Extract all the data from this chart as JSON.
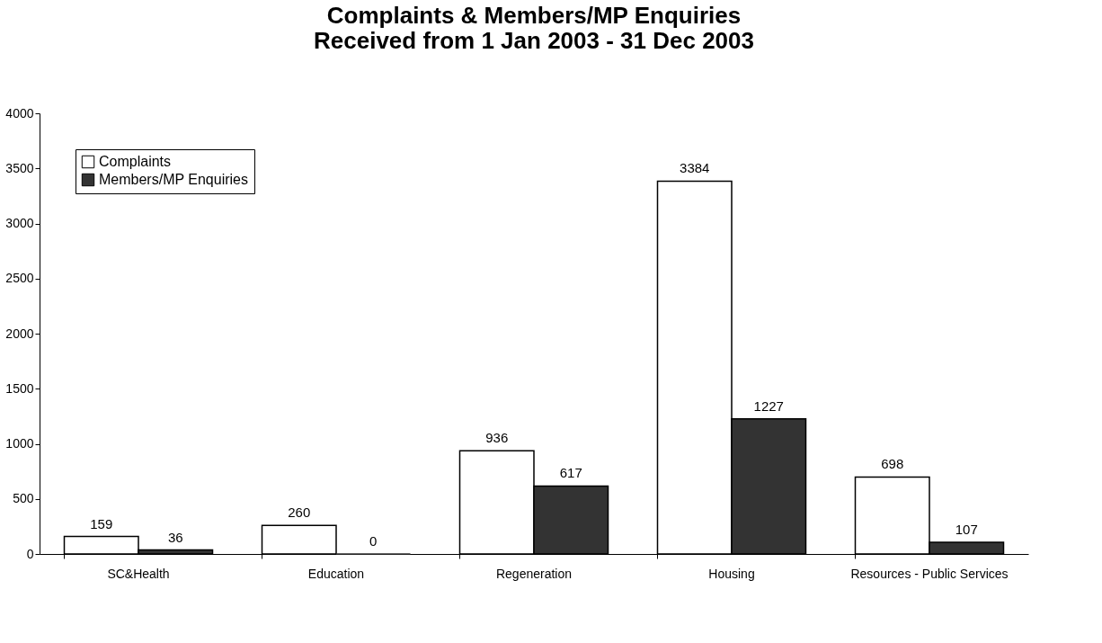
{
  "chart_data": {
    "type": "bar",
    "title": "Complaints & Members/MP Enquiries\nReceived from 1 Jan 2003 - 31 Dec 2003",
    "categories": [
      "SC&Health",
      "Education",
      "Regeneration",
      "Housing",
      "Resources - Public Services"
    ],
    "series": [
      {
        "name": "Complaints",
        "color": "#ffffff",
        "values": [
          159,
          260,
          936,
          3384,
          698
        ]
      },
      {
        "name": "Members/MP Enquiries",
        "color": "#333333",
        "values": [
          36,
          0,
          617,
          1227,
          107
        ]
      }
    ],
    "ylim": [
      0,
      4000
    ],
    "yticks": [
      0,
      500,
      1000,
      1500,
      2000,
      2500,
      3000,
      3500,
      4000
    ],
    "grid": false,
    "legend": "top left",
    "data_labels": true
  }
}
